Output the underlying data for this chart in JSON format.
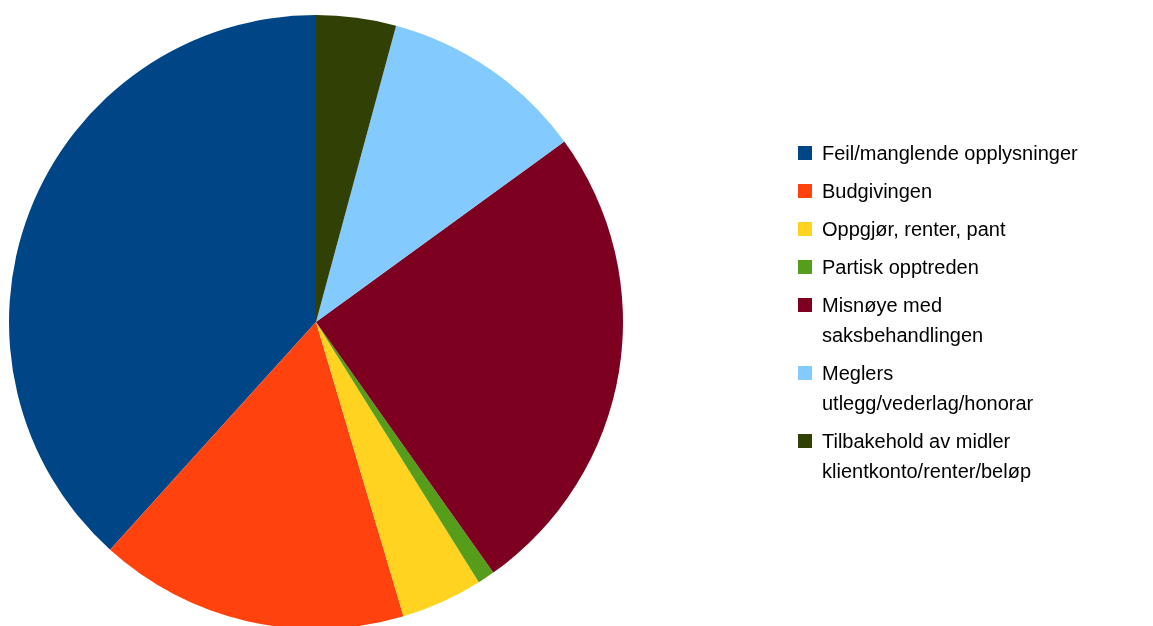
{
  "chart_data": {
    "type": "pie",
    "categories": [
      "Feil/manglende opplysninger",
      "Budgivingen",
      "Oppgjør, renter, pant",
      "Partisk opptreden",
      "Misnøye med saksbehandlingen",
      "Meglers utlegg/vederlag/honorar",
      "Tilbakehold av midler klientkonto/renter/beløp"
    ],
    "values": [
      38.3,
      16.3,
      4.3,
      0.9,
      25.2,
      10.8,
      4.2
    ],
    "colors": [
      "#004586",
      "#ff420e",
      "#ffd320",
      "#579d1c",
      "#7e0021",
      "#83caff",
      "#314004"
    ],
    "legend": "right"
  }
}
